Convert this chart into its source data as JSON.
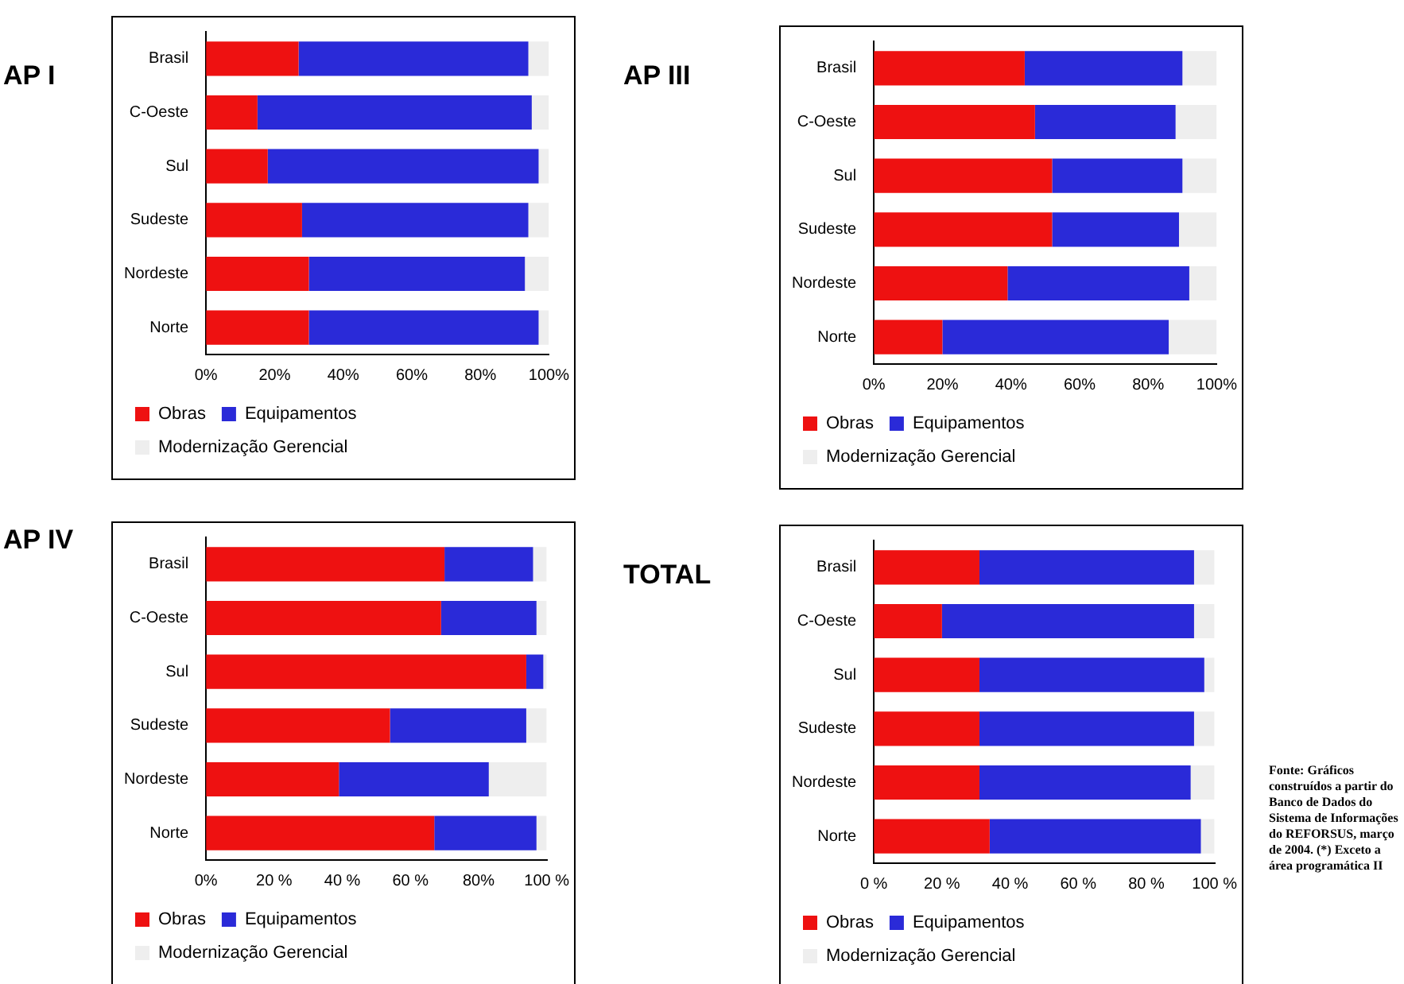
{
  "chart_data": [
    {
      "type": "bar",
      "title": "AP I",
      "orientation": "horizontal",
      "stacked": true,
      "legend": "bottom",
      "categories": [
        "Brasil",
        "C-Oeste",
        "Sul",
        "Sudeste",
        "Nordeste",
        "Norte"
      ],
      "xlim": [
        0,
        100
      ],
      "xticks": [
        {
          "value": 0,
          "label": "0%"
        },
        {
          "value": 20,
          "label": "20%"
        },
        {
          "value": 40,
          "label": "40%"
        },
        {
          "value": 60,
          "label": "60%"
        },
        {
          "value": 80,
          "label": "80%"
        },
        {
          "value": 100,
          "label": "100%"
        }
      ],
      "series": [
        {
          "name": "Obras",
          "color": "#ee1111",
          "values": [
            27,
            15,
            18,
            28,
            30,
            30
          ]
        },
        {
          "name": "Equipamentos",
          "color": "#2a2ad8",
          "values": [
            67,
            80,
            79,
            66,
            63,
            67
          ]
        },
        {
          "name": "Modernização Gerencial",
          "color": "#eeeeee",
          "values": [
            6,
            5,
            3,
            6,
            7,
            3
          ]
        }
      ]
    },
    {
      "type": "bar",
      "title": "AP III",
      "orientation": "horizontal",
      "stacked": true,
      "legend": "bottom",
      "categories": [
        "Brasil",
        "C-Oeste",
        "Sul",
        "Sudeste",
        "Nordeste",
        "Norte"
      ],
      "xlim": [
        0,
        100
      ],
      "xticks": [
        {
          "value": 0,
          "label": "0%"
        },
        {
          "value": 20,
          "label": "20%"
        },
        {
          "value": 40,
          "label": "40%"
        },
        {
          "value": 60,
          "label": "60%"
        },
        {
          "value": 80,
          "label": "80%"
        },
        {
          "value": 100,
          "label": "100%"
        }
      ],
      "series": [
        {
          "name": "Obras",
          "color": "#ee1111",
          "values": [
            44,
            47,
            52,
            52,
            39,
            20
          ]
        },
        {
          "name": "Equipamentos",
          "color": "#2a2ad8",
          "values": [
            46,
            41,
            38,
            37,
            53,
            66
          ]
        },
        {
          "name": "Modernização Gerencial",
          "color": "#eeeeee",
          "values": [
            10,
            12,
            10,
            11,
            8,
            14
          ]
        }
      ]
    },
    {
      "type": "bar",
      "title": "AP IV",
      "orientation": "horizontal",
      "stacked": true,
      "legend": "bottom",
      "categories": [
        "Brasil",
        "C-Oeste",
        "Sul",
        "Sudeste",
        "Nordeste",
        "Norte"
      ],
      "xlim": [
        0,
        100
      ],
      "xticks": [
        {
          "value": 0,
          "label": "0%"
        },
        {
          "value": 20,
          "label": "20 %"
        },
        {
          "value": 40,
          "label": "40 %"
        },
        {
          "value": 60,
          "label": "60 %"
        },
        {
          "value": 80,
          "label": "80%"
        },
        {
          "value": 100,
          "label": "100 %"
        }
      ],
      "series": [
        {
          "name": "Obras",
          "color": "#ee1111",
          "values": [
            70,
            69,
            94,
            54,
            39,
            67
          ]
        },
        {
          "name": "Equipamentos",
          "color": "#2a2ad8",
          "values": [
            26,
            28,
            5,
            40,
            44,
            30
          ]
        },
        {
          "name": "Modernização Gerencial",
          "color": "#eeeeee",
          "values": [
            4,
            3,
            1,
            6,
            17,
            3
          ]
        }
      ]
    },
    {
      "type": "bar",
      "title": "TOTAL",
      "orientation": "horizontal",
      "stacked": true,
      "legend": "bottom",
      "categories": [
        "Brasil",
        "C-Oeste",
        "Sul",
        "Sudeste",
        "Nordeste",
        "Norte"
      ],
      "xlim": [
        0,
        100
      ],
      "xticks": [
        {
          "value": 0,
          "label": "0 %"
        },
        {
          "value": 20,
          "label": "20 %"
        },
        {
          "value": 40,
          "label": "40 %"
        },
        {
          "value": 60,
          "label": "60 %"
        },
        {
          "value": 80,
          "label": "80 %"
        },
        {
          "value": 100,
          "label": "100 %"
        }
      ],
      "series": [
        {
          "name": "Obras",
          "color": "#ee1111",
          "values": [
            31,
            20,
            31,
            31,
            31,
            34
          ]
        },
        {
          "name": "Equipamentos",
          "color": "#2a2ad8",
          "values": [
            63,
            74,
            66,
            63,
            62,
            62
          ]
        },
        {
          "name": "Modernização Gerencial",
          "color": "#eeeeee",
          "values": [
            6,
            6,
            3,
            6,
            7,
            4
          ]
        }
      ],
      "annotations": [
        "Fonte: Gráficos construídos a partir do Banco de Dados do Sistema de Informações do REFORSUS, março de 2004. (*) Exceto a área programática II"
      ]
    }
  ]
}
